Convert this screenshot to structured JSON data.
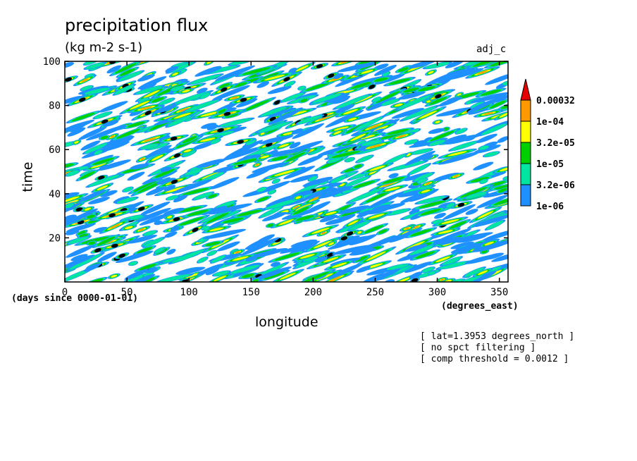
{
  "chart_data": {
    "type": "heatmap",
    "title": "precipitation flux",
    "subtitle": "(kg m-2 s-1)",
    "run_label": "adj_c",
    "xlabel": "longitude",
    "x_unit": "(degrees_east)",
    "ylabel": "time",
    "y_unit": "(days since 0000-01-01)",
    "xlim": [
      0,
      357
    ],
    "ylim": [
      0,
      100
    ],
    "x_ticks": [
      0,
      50,
      100,
      150,
      200,
      250,
      300,
      350
    ],
    "y_ticks": [
      20,
      40,
      60,
      80,
      100
    ],
    "colorbar": {
      "levels": [
        "1e-06",
        "3.2e-06",
        "1e-05",
        "3.2e-05",
        "1e-04",
        "0.00032"
      ],
      "colors": [
        "#1e90ff",
        "#00e6a0",
        "#00d000",
        "#ffff00",
        "#ff9900",
        "#e60000"
      ],
      "extend_color": "#e60000",
      "over_threshold_color": "#000000"
    },
    "annotations": [
      "[ lat=1.3953 degrees_north ]",
      "[ no spct filtering ]",
      "[ comp threshold = 0.0012 ]"
    ],
    "pattern": "Dense field of small precipitation streaks tilted eastward with time (eastward-propagating disturbances); black blobs mark values above the comp threshold; white gaps where flux < 1e-06."
  }
}
